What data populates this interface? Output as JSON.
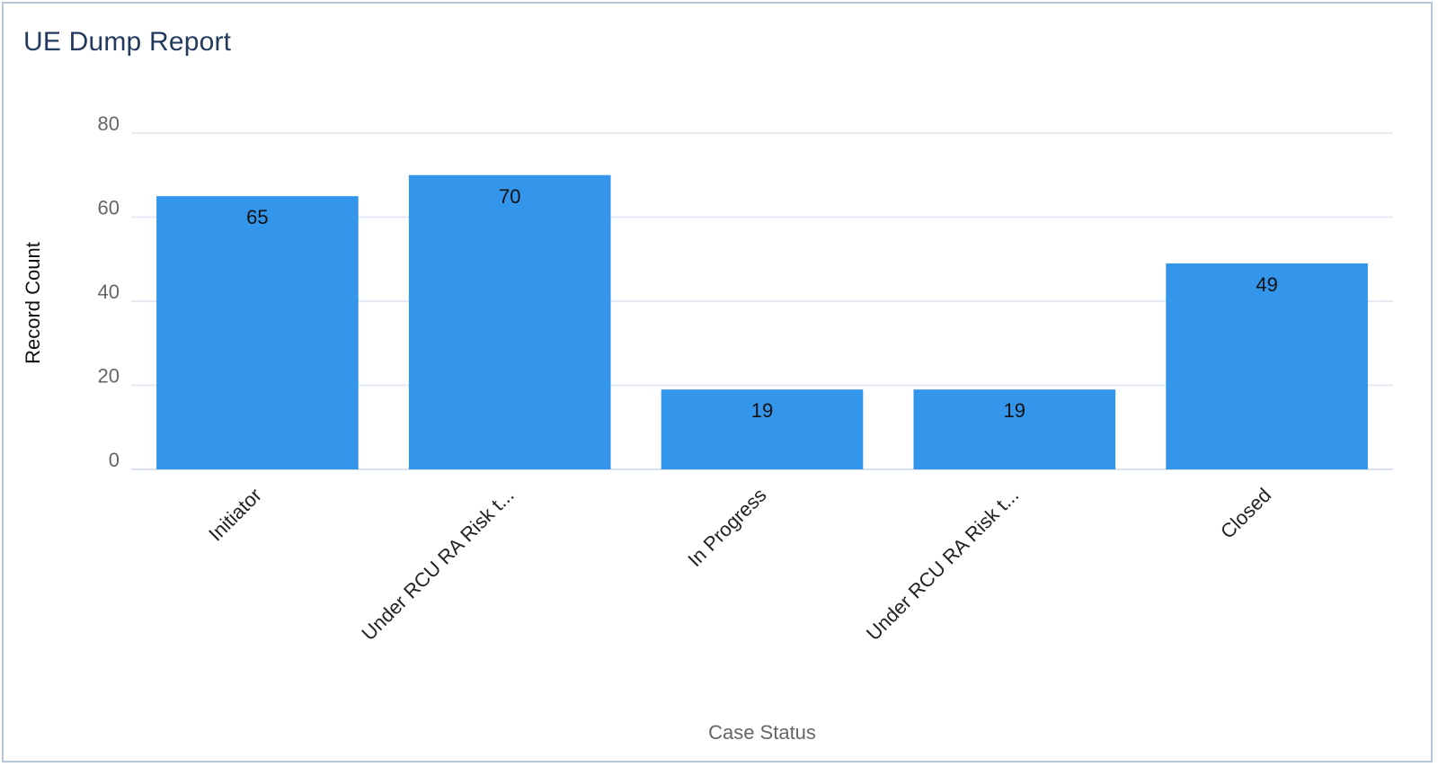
{
  "report": {
    "title": "UE Dump Report"
  },
  "colors": {
    "bar": "#3396eb",
    "grid": "#e6ebf3",
    "axis_line": "#d9e2ee",
    "border": "#b8c7d8"
  },
  "chart_data": {
    "type": "bar",
    "categories": [
      "Initiator",
      "Under RCU RA Risk t...",
      "In Progress",
      "Under RCU RA Risk t...",
      "Closed"
    ],
    "values": [
      65,
      70,
      19,
      19,
      49
    ],
    "data_labels": [
      "65",
      "70",
      "19",
      "19",
      "49"
    ],
    "xlabel": "Case Status",
    "ylabel": "Record Count",
    "ylim": [
      0,
      80
    ],
    "yticks": [
      0,
      20,
      40,
      60,
      80
    ],
    "ytick_labels": [
      "0",
      "20",
      "40",
      "60",
      "80"
    ],
    "grid": true,
    "legend": "none"
  }
}
